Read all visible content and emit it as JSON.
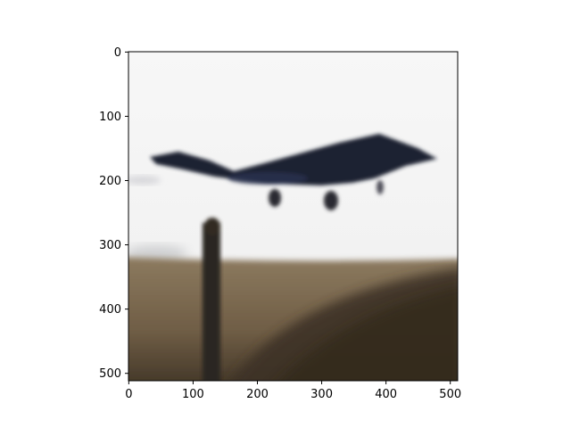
{
  "image": {
    "description_icon": "photo-icon",
    "x_ticks": [
      {
        "value": 0,
        "label": "0"
      },
      {
        "value": 100,
        "label": "100"
      },
      {
        "value": 200,
        "label": "200"
      },
      {
        "value": 300,
        "label": "300"
      },
      {
        "value": 400,
        "label": "400"
      },
      {
        "value": 500,
        "label": "500"
      }
    ],
    "y_ticks": [
      {
        "value": 0,
        "label": "0"
      },
      {
        "value": 100,
        "label": "100"
      },
      {
        "value": 200,
        "label": "200"
      },
      {
        "value": 300,
        "label": "300"
      },
      {
        "value": 400,
        "label": "400"
      },
      {
        "value": 500,
        "label": "500"
      }
    ],
    "extent": [
      0,
      512,
      512,
      0
    ],
    "colors": {
      "sky": "#f4f4f4",
      "ground": "#7b6a52",
      "ground_dark": "#4b3d2d",
      "aircraft": "#1d2233",
      "pole": "#2b2720"
    }
  }
}
